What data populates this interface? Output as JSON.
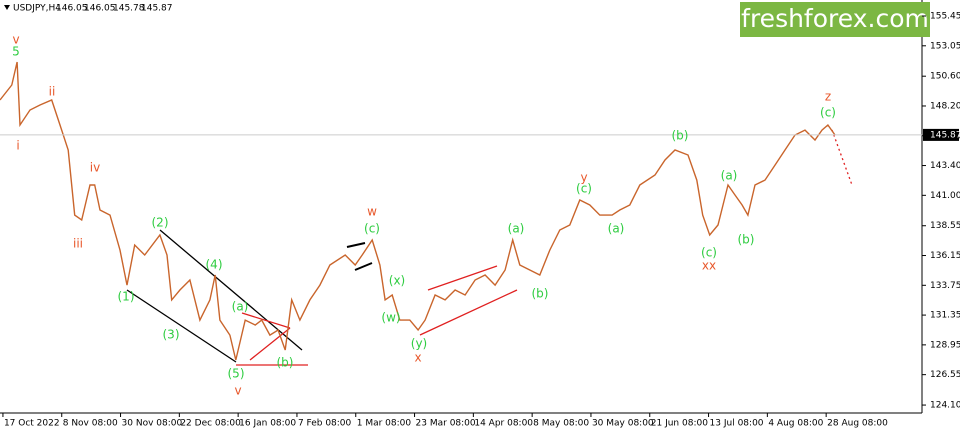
{
  "chart_data": {
    "type": "line",
    "symbol": "USDJPY,H4",
    "ohlc": [
      146.05,
      146.05,
      145.78,
      145.87
    ],
    "watermark": "freshforex.com",
    "current_price": 145.87,
    "color": "#c9652c",
    "x": [
      -0.05,
      0.15,
      0.24,
      0.29,
      0.46,
      0.63,
      0.83,
      0.97,
      1.11,
      1.22,
      1.34,
      1.48,
      1.56,
      1.65,
      1.82,
      1.99,
      2.11,
      2.24,
      2.41,
      2.67,
      2.79,
      2.87,
      3.01,
      3.18,
      3.35,
      3.52,
      3.61,
      3.69,
      3.86,
      3.96,
      4.12,
      4.29,
      4.4,
      4.54,
      4.68,
      4.8,
      4.91,
      5.05,
      5.22,
      5.39,
      5.56,
      5.82,
      5.99,
      6.11,
      6.28,
      6.41,
      6.5,
      6.62,
      6.75,
      6.92,
      7.06,
      7.18,
      7.35,
      7.52,
      7.69,
      7.86,
      8.03,
      8.2,
      8.37,
      8.54,
      8.67,
      8.79,
      8.96,
      9.13,
      9.3,
      9.47,
      9.64,
      9.81,
      9.98,
      10.15,
      10.36,
      10.49,
      10.66,
      10.83,
      11.09,
      11.26,
      11.43,
      11.65,
      11.8,
      11.9,
      12.02,
      12.16,
      12.33,
      12.45,
      12.57,
      12.67,
      12.79,
      12.96,
      13.13,
      13.3,
      13.47,
      13.64,
      13.81,
      13.93,
      14.03,
      14.15
    ],
    "values": [
      148.68,
      149.89,
      151.74,
      146.67,
      147.88,
      148.28,
      148.68,
      146.67,
      144.65,
      139.41,
      139.01,
      141.83,
      141.83,
      139.82,
      139.41,
      136.59,
      133.77,
      137.0,
      136.19,
      137.8,
      136.19,
      132.57,
      133.37,
      134.18,
      130.95,
      132.57,
      134.58,
      130.95,
      129.74,
      127.73,
      130.95,
      130.55,
      130.95,
      129.74,
      130.15,
      128.54,
      132.57,
      130.95,
      132.57,
      133.77,
      135.39,
      136.19,
      135.39,
      136.19,
      137.4,
      135.39,
      132.57,
      132.97,
      130.95,
      130.95,
      130.15,
      130.95,
      132.97,
      132.57,
      133.37,
      132.97,
      134.18,
      134.58,
      133.77,
      134.98,
      137.4,
      135.39,
      134.98,
      134.58,
      136.59,
      138.21,
      138.61,
      140.62,
      140.22,
      139.41,
      139.41,
      139.82,
      140.22,
      141.83,
      142.64,
      143.85,
      144.65,
      144.25,
      142.23,
      139.41,
      137.8,
      138.61,
      141.83,
      141.03,
      140.22,
      139.41,
      141.83,
      142.23,
      143.44,
      144.65,
      145.86,
      146.26,
      145.46,
      146.26,
      146.67,
      145.86
    ],
    "xlim": [
      -0.05,
      15.63
    ],
    "xticks": [
      {
        "value": 0,
        "label": "17 Oct 2022"
      },
      {
        "value": 1,
        "label": "8 Nov 08:00"
      },
      {
        "value": 2,
        "label": "30 Nov 08:00"
      },
      {
        "value": 3,
        "label": "22 Dec 08:00"
      },
      {
        "value": 4,
        "label": "16 Jan 08:00"
      },
      {
        "value": 5,
        "label": "7 Feb 08:00"
      },
      {
        "value": 6,
        "label": "1 Mar 08:00"
      },
      {
        "value": 7,
        "label": "23 Mar 08:00"
      },
      {
        "value": 8,
        "label": "14 Apr 08:00"
      },
      {
        "value": 9,
        "label": "8 May 08:00"
      },
      {
        "value": 10,
        "label": "30 May 08:00"
      },
      {
        "value": 11,
        "label": "21 Jun 08:00"
      },
      {
        "value": 12,
        "label": "13 Jul 08:00"
      },
      {
        "value": 13,
        "label": "4 Aug 08:00"
      },
      {
        "value": 14,
        "label": "28 Aug 08:00"
      }
    ],
    "ylim": [
      123.46,
      156.74
    ],
    "yticks": [
      155.45,
      153.05,
      {
        "value": 150.6,
        "label": "150.60"
      },
      {
        "value": 148.2,
        "label": "148.20"
      },
      {
        "value": 145.8,
        "label": "145.80"
      },
      {
        "value": 143.4,
        "label": "143.40"
      },
      {
        "value": 141,
        "label": "141.00"
      },
      138.55,
      136.15,
      133.75,
      131.35,
      128.95,
      126.55,
      {
        "value": 124.1,
        "label": "124.10"
      }
    ],
    "annotations": [
      {
        "text": "v",
        "color": "#e8572a"
      },
      {
        "text": "5",
        "color": "#2ecc40"
      },
      {
        "text": "i",
        "color": "#e8572a"
      },
      {
        "text": "ii",
        "color": "#e8572a"
      },
      {
        "text": "iv",
        "color": "#e8572a"
      },
      {
        "text": "iii",
        "color": "#e8572a"
      },
      {
        "text": "(1)",
        "color": "#2ecc40"
      },
      {
        "text": "(2)",
        "color": "#2ecc40"
      },
      {
        "text": "(3)",
        "color": "#2ecc40"
      },
      {
        "text": "(4)",
        "color": "#2ecc40"
      },
      {
        "text": "(5)",
        "color": "#2ecc40"
      },
      {
        "text": "v",
        "color": "#e8572a"
      },
      {
        "text": "(a)",
        "color": "#2ecc40"
      },
      {
        "text": "(b)",
        "color": "#2ecc40"
      },
      {
        "text": "w",
        "color": "#e8572a"
      },
      {
        "text": "(c)",
        "color": "#2ecc40"
      },
      {
        "text": "(x)",
        "color": "#2ecc40"
      },
      {
        "text": "(w)",
        "color": "#2ecc40"
      },
      {
        "text": "(y)",
        "color": "#2ecc40"
      },
      {
        "text": "x",
        "color": "#e8572a"
      },
      {
        "text": "(a)",
        "color": "#2ecc40"
      },
      {
        "text": "(b)",
        "color": "#2ecc40"
      },
      {
        "text": "y",
        "color": "#e8572a"
      },
      {
        "text": "(c)",
        "color": "#2ecc40"
      },
      {
        "text": "(a)",
        "color": "#2ecc40"
      },
      {
        "text": "(b)",
        "color": "#2ecc40"
      },
      {
        "text": "(c)",
        "color": "#2ecc40"
      },
      {
        "text": "xx",
        "color": "#e8572a"
      },
      {
        "text": "(a)",
        "color": "#2ecc40"
      },
      {
        "text": "(b)",
        "color": "#2ecc40"
      },
      {
        "text": "z",
        "color": "#e8572a"
      },
      {
        "text": "(c)",
        "color": "#2ecc40"
      }
    ]
  }
}
